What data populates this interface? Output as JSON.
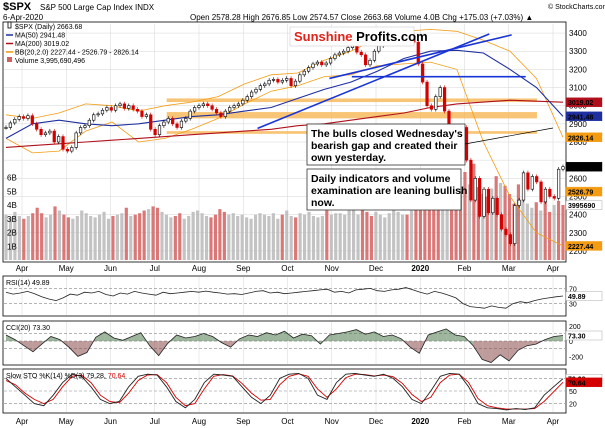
{
  "header": {
    "symbol": "$SPX",
    "description": "S&P 500 Large Cap Index  INDX",
    "date": "6-Apr-2020",
    "readout": "Open 2578.28  High 2676.85  Low 2574.57  Close 2663.68  Volume 4.0B  Chg +175.03 (+7.03%) ▲",
    "credit": "© StockCharts.com"
  },
  "logo": {
    "part1": "Sunshine ",
    "part2": "Profits.com"
  },
  "annotations": [
    {
      "lines": [
        "The bulls closed Wednesday's",
        "bearish gap and created their",
        "own yesterday."
      ]
    },
    {
      "lines": [
        "Daily indicators and volume",
        "examination are leaning bullish",
        "now."
      ]
    }
  ],
  "legend": [
    {
      "text": "$SPX (Daily) 2663.68",
      "color": "#000000",
      "marker": "candle"
    },
    {
      "text": "MA(50) 2941.48",
      "color": "#1f2fa0",
      "marker": "line"
    },
    {
      "text": "MA(200) 3019.02",
      "color": "#b0101c",
      "marker": "line"
    },
    {
      "text": "BB(20,2.0) 2227.44 - 2526.79 - 2826.14",
      "color": "#f39c12",
      "marker": "line"
    },
    {
      "text": "Volume 3,995,690,496",
      "color": "#d35f5f",
      "marker": "box"
    }
  ],
  "colors": {
    "up": "#000000",
    "down": "#d40000",
    "ma50": "#1f2fa0",
    "ma200": "#b0101c",
    "bb": "#f39c12",
    "band": "#f6b24a",
    "trend": "#1a35d6",
    "vol_down": "#d35f5f",
    "vol_up": "#b8b8b8",
    "indicator": "#222222",
    "sto_d": "#d40000",
    "cci_pos": "#4d7a4d",
    "cci_neg": "#8a4a4a",
    "grid": "#d6d6d6"
  },
  "panels": {
    "rsi": {
      "title": "RSI(14) 49.89"
    },
    "cci": {
      "title": "CCI(20) 73.30"
    },
    "sto": {
      "title_prefix": "Slow STO %K(14) %D(3) 79.28, ",
      "d_value": "70.64"
    }
  },
  "badges": [
    {
      "panel": "price",
      "value": 3019.02,
      "label": "3019.02",
      "bg": "#b0101c",
      "fg": "#ffffff"
    },
    {
      "panel": "price",
      "value": 2941.48,
      "label": "2941.48",
      "bg": "#1f2fa0",
      "fg": "#ffffff"
    },
    {
      "panel": "price",
      "value": 2826.14,
      "label": "2826.14",
      "bg": "#f39c12",
      "fg": "#000000"
    },
    {
      "panel": "price",
      "value": 2663.68,
      "label": "2663.68",
      "bg": "#000000",
      "fg": "#ffffff"
    },
    {
      "panel": "price",
      "value": 2526.79,
      "label": "2526.79",
      "bg": "#f39c12",
      "fg": "#000000"
    },
    {
      "panel": "price",
      "value": 2227.44,
      "label": "2227.44",
      "bg": "#f39c12",
      "fg": "#000000"
    },
    {
      "panel": "volume",
      "value": 3.99,
      "label": "3995690",
      "bg": "#ffffff",
      "fg": "#000000"
    },
    {
      "panel": "rsi",
      "value": 49.89,
      "label": "49.89",
      "bg": "#ffffff",
      "fg": "#000000"
    },
    {
      "panel": "cci",
      "value": 73.3,
      "label": "73.30",
      "bg": "#ffffff",
      "fg": "#000000"
    },
    {
      "panel": "sto",
      "value": 79.28,
      "label": "79.28",
      "bg": "#ffffff",
      "fg": "#000000"
    },
    {
      "panel": "sto",
      "value": 70.64,
      "label": "70.64",
      "bg": "#d40000",
      "fg": "#ffffff"
    }
  ],
  "chart_data": {
    "type": "line",
    "title": "$SPX S&P 500 Large Cap Index INDX (Daily)",
    "xlabel": "",
    "ylabel": "",
    "x_start_label": "Apr 2019",
    "x_end_label": "6-Apr-2020",
    "x_tick_labels": [
      "Apr",
      "May",
      "Jun",
      "Jul",
      "Aug",
      "Sep",
      "Oct",
      "Nov",
      "Dec",
      "2020",
      "Feb",
      "Mar",
      "Apr"
    ],
    "price_axis": {
      "ylim": [
        2150,
        3450
      ],
      "ticks": [
        2200,
        2300,
        2400,
        2500,
        2600,
        2700,
        2800,
        2900,
        3000,
        3100,
        3200,
        3300,
        3400
      ],
      "labelled_ticks": [
        2200,
        2300,
        2400,
        2500,
        2600,
        2800,
        2900,
        3000,
        3100,
        3200,
        3300,
        3400
      ]
    },
    "volume_axis": {
      "ylim": [
        0,
        8
      ],
      "labels": [
        "1B",
        "2B",
        "3B",
        "4B",
        "5B",
        "6B"
      ],
      "values": [
        1,
        2,
        3,
        4,
        5,
        6
      ]
    },
    "series": [
      {
        "name": "$SPX (Daily)",
        "values": [
          2880,
          2905,
          2925,
          2940,
          2930,
          2945,
          2900,
          2870,
          2840,
          2850,
          2860,
          2800,
          2830,
          2760,
          2750,
          2770,
          2850,
          2880,
          2890,
          2920,
          2950,
          2955,
          2975,
          2990,
          2975,
          3000,
          3010,
          2985,
          3000,
          2980,
          2970,
          2940,
          2950,
          2870,
          2840,
          2890,
          2910,
          2930,
          2900,
          2880,
          2915,
          2930,
          2970,
          2990,
          3000,
          3010,
          3000,
          2980,
          2960,
          2940,
          2970,
          2990,
          3000,
          3010,
          3030,
          3050,
          3075,
          3090,
          3110,
          3120,
          3140,
          3145,
          3130,
          3140,
          3150,
          3110,
          3135,
          3170,
          3190,
          3210,
          3230,
          3240,
          3225,
          3235,
          3260,
          3280,
          3290,
          3300,
          3320,
          3330,
          3295,
          3280,
          3225,
          3250,
          3300,
          3330,
          3340,
          3370,
          3375,
          3380,
          3355,
          3390,
          3385,
          3350,
          3230,
          3130,
          3000,
          2980,
          3050,
          3100,
          2970,
          2880,
          2800,
          2740,
          2880,
          2700,
          2480,
          2600,
          2390,
          2540,
          2410,
          2490,
          2400,
          2320,
          2290,
          2240,
          2450,
          2480,
          2630,
          2540,
          2610,
          2580,
          2470,
          2540,
          2500,
          2490,
          2650,
          2664
        ]
      },
      {
        "name": "MA(50)",
        "values": [
          2820,
          2900,
          2920,
          2900,
          2890,
          2900,
          2920,
          2940,
          2950,
          2970,
          2990,
          3040,
          3090,
          3130,
          3190,
          3260,
          3300,
          3305,
          3290,
          3200,
          3100,
          2941
        ]
      },
      {
        "name": "MA(200)",
        "values": [
          2770,
          2780,
          2790,
          2800,
          2810,
          2820,
          2830,
          2840,
          2850,
          2860,
          2870,
          2890,
          2900,
          2920,
          2940,
          2960,
          2990,
          3010,
          3020,
          3030,
          3025,
          3019
        ]
      },
      {
        "name": "BB upper",
        "values": [
          2950,
          2930,
          2960,
          3010,
          3000,
          2970,
          3000,
          3020,
          3050,
          3120,
          3170,
          3180,
          3250,
          3300,
          3370,
          3410,
          3420,
          3410,
          3360,
          3300,
          3150,
          2826
        ]
      },
      {
        "name": "BB lower",
        "values": [
          2820,
          2740,
          2750,
          2860,
          2910,
          2800,
          2820,
          2870,
          2930,
          3010,
          3080,
          3110,
          3160,
          3170,
          3220,
          3230,
          3240,
          3200,
          2800,
          2500,
          2300,
          2227
        ]
      }
    ],
    "horizontal_zones": [
      {
        "from": 2930,
        "to": 2965,
        "label": ""
      },
      {
        "from": 3020,
        "to": 3040,
        "label": ""
      },
      {
        "from": 2845,
        "to": 2860,
        "label": ""
      }
    ],
    "trendlines": [
      {
        "from": [
          0.452,
          2875
        ],
        "to": [
          0.865,
          3395
        ]
      },
      {
        "from": [
          0.58,
          3150
        ],
        "to": [
          0.905,
          3390
        ]
      },
      {
        "from": [
          0.62,
          3160
        ],
        "to": [
          0.93,
          3160
        ]
      }
    ],
    "volume": {
      "values": [
        3.3,
        3.1,
        3.5,
        3.2,
        3.0,
        3.2,
        3.4,
        3.8,
        3.4,
        3.1,
        3.3,
        3.9,
        3.6,
        3.3,
        3.1,
        3.0,
        3.2,
        3.6,
        3.4,
        3.2,
        3.1,
        3.3,
        3.5,
        3.0,
        3.2,
        3.3,
        3.4,
        3.8,
        3.2,
        3.3,
        3.4,
        3.6,
        3.7,
        3.9,
        3.8,
        3.5,
        3.3,
        3.1,
        3.2,
        3.4,
        3.0,
        3.2,
        3.5,
        3.6,
        3.4,
        3.2,
        3.1,
        3.3,
        3.7,
        3.5,
        3.3,
        3.4,
        3.2,
        3.3,
        3.1,
        3.0,
        3.3,
        3.4,
        3.3,
        3.2,
        3.4,
        3.0,
        3.3,
        3.6,
        3.2,
        3.1,
        3.4,
        3.3,
        3.5,
        3.2,
        3.1,
        3.2,
        3.6,
        3.3,
        3.4,
        3.4,
        3.3,
        3.6,
        3.8,
        3.3,
        3.9,
        3.5,
        3.2,
        3.5,
        3.3,
        3.1,
        3.4,
        3.7,
        3.5,
        3.3,
        3.3,
        3.6,
        4.0,
        4.5,
        4.2,
        5.6,
        6.0,
        5.2,
        4.3,
        4.5,
        5.8,
        6.2,
        5.0,
        6.4,
        5.5,
        7.0,
        5.3,
        4.8,
        4.6,
        5.2,
        6.1,
        5.6,
        5.4,
        4.8,
        4.1,
        5.5,
        4.4,
        4.1,
        3.8,
        4.2,
        3.6,
        4.3,
        3.5,
        4.0,
        4.3,
        4.0
      ]
    },
    "rsi": {
      "ylim": [
        0,
        100
      ],
      "ref_lines": [
        30,
        70
      ],
      "values": [
        60,
        55,
        58,
        62,
        56,
        48,
        42,
        38,
        45,
        55,
        52,
        60,
        58,
        62,
        54,
        50,
        58,
        55,
        62,
        58,
        55,
        52,
        60,
        56,
        58,
        60,
        62,
        60,
        63,
        60,
        58,
        55,
        56,
        54,
        58,
        62,
        64,
        58,
        60,
        56,
        58,
        60,
        62,
        64,
        66,
        68,
        60,
        62,
        58,
        66,
        68,
        70,
        64,
        62,
        66,
        68,
        72,
        66,
        60,
        55,
        62,
        58,
        52,
        45,
        30,
        22,
        20,
        18,
        24,
        20,
        18,
        30,
        35,
        32,
        38,
        42,
        45,
        48,
        50
      ]
    },
    "cci": {
      "ylim": [
        -300,
        250
      ],
      "ref_lines": [
        -100,
        0,
        100
      ],
      "values": [
        80,
        20,
        -60,
        -140,
        -40,
        60,
        20,
        -80,
        -200,
        -150,
        50,
        120,
        40,
        10,
        60,
        110,
        -60,
        -190,
        -30,
        80,
        40,
        60,
        100,
        60,
        -20,
        -80,
        30,
        80,
        60,
        110,
        80,
        130,
        40,
        90,
        70,
        -40,
        80,
        100,
        120,
        150,
        90,
        120,
        60,
        80,
        30,
        -80,
        -160,
        80,
        120,
        160,
        80,
        60,
        -60,
        -240,
        -280,
        -180,
        -260,
        -120,
        -60,
        -40,
        20,
        60,
        73
      ]
    },
    "sto": {
      "ylim": [
        0,
        100
      ],
      "ref_lines": [
        20,
        50,
        80
      ],
      "k": [
        80,
        60,
        40,
        20,
        15,
        40,
        70,
        90,
        85,
        60,
        30,
        20,
        25,
        60,
        85,
        90,
        88,
        60,
        25,
        10,
        30,
        70,
        90,
        88,
        85,
        60,
        35,
        20,
        40,
        80,
        90,
        92,
        80,
        40,
        30,
        70,
        90,
        92,
        88,
        85,
        90,
        80,
        60,
        30,
        20,
        50,
        85,
        92,
        90,
        60,
        20,
        10,
        8,
        5,
        8,
        6,
        10,
        40,
        60,
        79.28
      ],
      "d": [
        75,
        65,
        45,
        30,
        20,
        30,
        60,
        85,
        88,
        70,
        40,
        25,
        22,
        45,
        75,
        88,
        89,
        70,
        35,
        15,
        20,
        55,
        85,
        89,
        86,
        68,
        45,
        28,
        30,
        65,
        85,
        91,
        85,
        55,
        35,
        55,
        82,
        90,
        89,
        86,
        88,
        84,
        68,
        42,
        25,
        35,
        70,
        88,
        90,
        70,
        32,
        15,
        10,
        7,
        7,
        7,
        8,
        25,
        48,
        70.64
      ]
    }
  }
}
